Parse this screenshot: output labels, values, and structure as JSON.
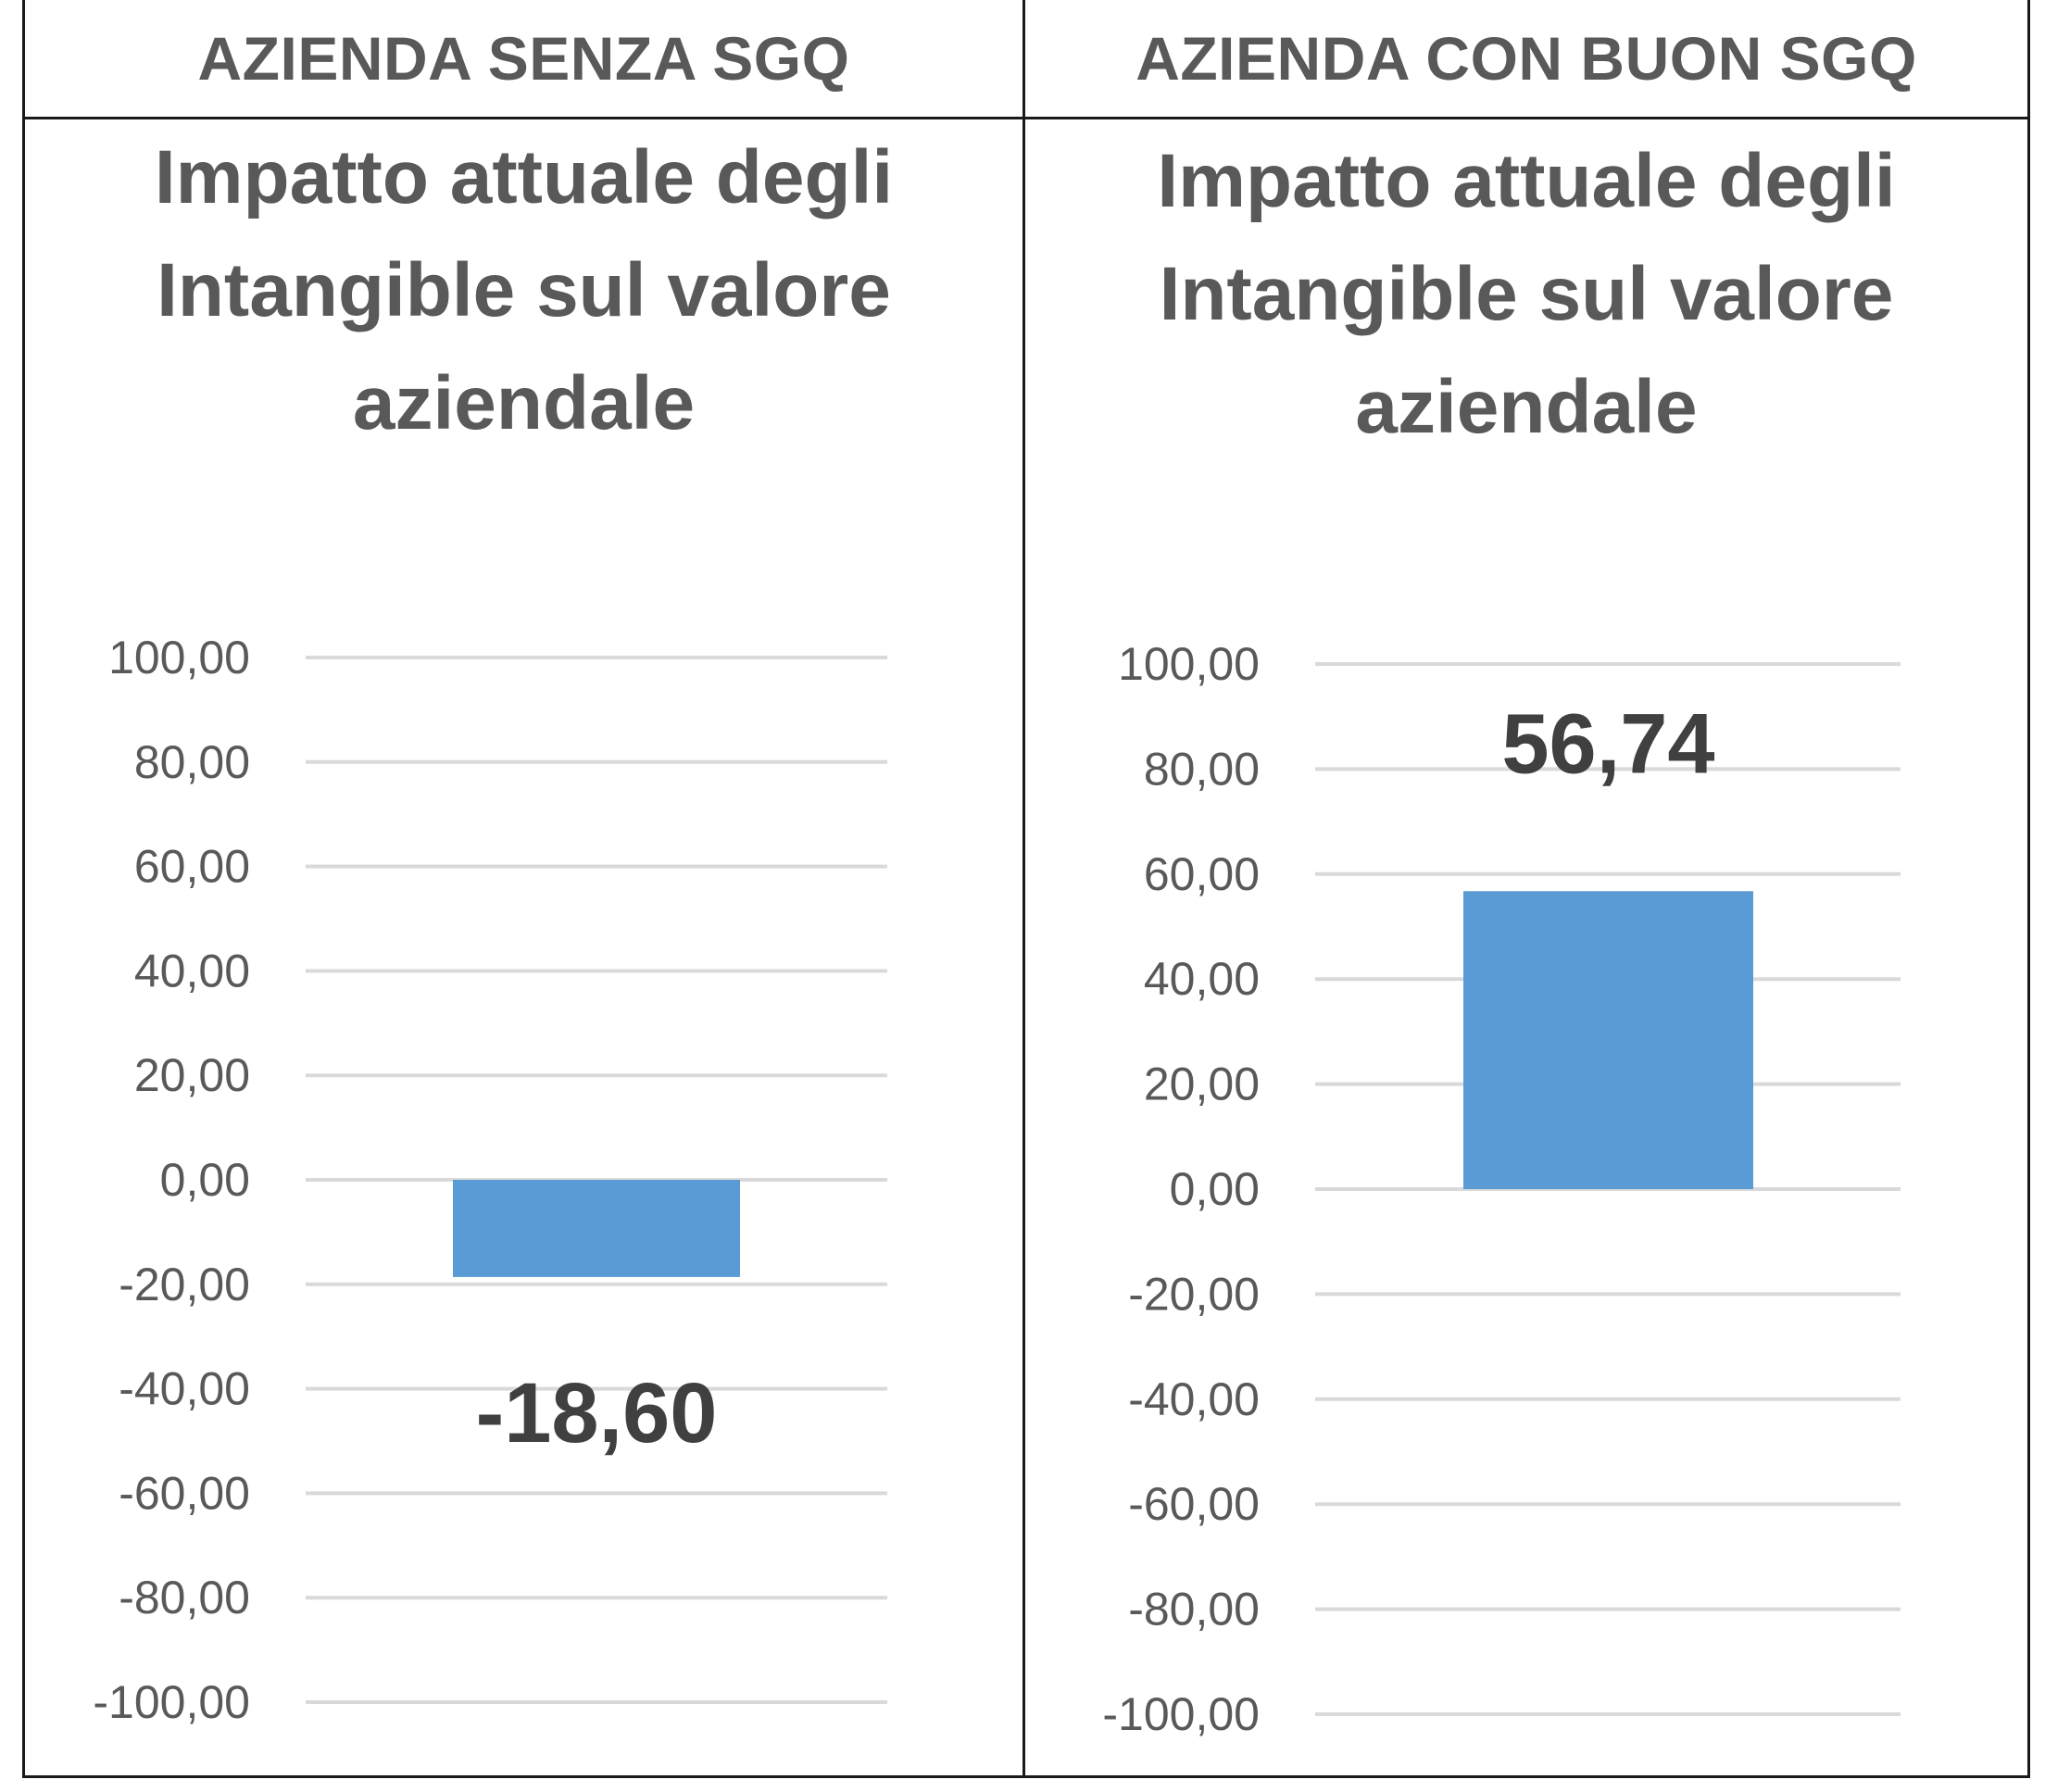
{
  "headers": {
    "left": "AZIENDA SENZA SGQ",
    "right": "AZIENDA CON BUON SGQ"
  },
  "colors": {
    "bar": "#5B9BD5",
    "gridline": "#D9D9D9",
    "text": "#595959",
    "border": "#1A1A1A"
  },
  "chart_data": [
    {
      "type": "bar",
      "title": "Impatto attuale degli Intangible sul valore aziendale",
      "title_lines": [
        "Impatto attuale degli",
        "Intangible sul valore",
        "aziendale"
      ],
      "categories": [
        ""
      ],
      "values": [
        -18.6
      ],
      "data_labels": [
        "-18,60"
      ],
      "ylim": [
        -100,
        100
      ],
      "yticks": [
        100,
        80,
        60,
        40,
        20,
        0,
        -20,
        -40,
        -60,
        -80,
        -100
      ],
      "ytick_labels": [
        "100,00",
        "80,00",
        "60,00",
        "40,00",
        "20,00",
        "0,00",
        "-20,00",
        "-40,00",
        "-60,00",
        "-80,00",
        "-100,00"
      ],
      "grid": true,
      "legend": "none"
    },
    {
      "type": "bar",
      "title": "Impatto attuale degli Intangible sul valore aziendale",
      "title_lines": [
        "Impatto attuale degli",
        "Intangible sul valore",
        "aziendale"
      ],
      "categories": [
        ""
      ],
      "values": [
        56.74
      ],
      "data_labels": [
        "56,74"
      ],
      "ylim": [
        -100,
        100
      ],
      "yticks": [
        100,
        80,
        60,
        40,
        20,
        0,
        -20,
        -40,
        -60,
        -80,
        -100
      ],
      "ytick_labels": [
        "100,00",
        "80,00",
        "60,00",
        "40,00",
        "20,00",
        "0,00",
        "-20,00",
        "-40,00",
        "-60,00",
        "-80,00",
        "-100,00"
      ],
      "grid": true,
      "legend": "none"
    }
  ]
}
